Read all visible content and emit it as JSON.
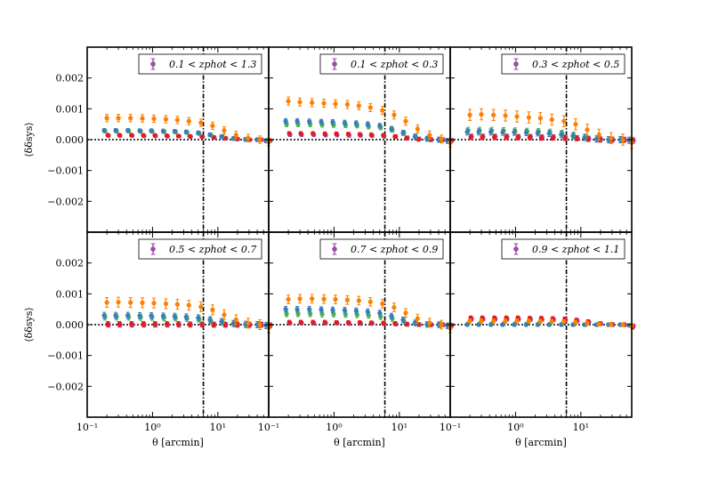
{
  "chart_data": {
    "type": "scatter",
    "layout": "2x3 grid of panels with shared axes",
    "xlabel": "θ [arcmin]",
    "ylabel": "⟨δδsys⟩",
    "xscale": "log",
    "xlim": [
      0.1,
      60
    ],
    "ylim": [
      -0.003,
      0.003
    ],
    "x_ticks": [
      "10⁻¹",
      "10⁰",
      "10¹"
    ],
    "y_ticks": [
      "0.002",
      "0.001",
      "0.000",
      "−0.001",
      "−0.002"
    ],
    "y_tick_values": [
      0.002,
      0.001,
      0.0,
      -0.001,
      -0.002
    ],
    "x_tick_values": [
      0.1,
      1,
      10
    ],
    "vline_theta": 6.0,
    "legend_marker_color": "#984ea3",
    "series_colors": {
      "orange": "#ff7f00",
      "green": "#4daf4a",
      "blue": "#377eb8",
      "purple": "#984ea3",
      "red": "#e41a1c"
    },
    "x_points": [
      0.2,
      0.3,
      0.46,
      0.7,
      1.05,
      1.6,
      2.4,
      3.6,
      5.5,
      8.3,
      12.5,
      19,
      29,
      44,
      60
    ],
    "panels": [
      {
        "legend": "0.1 < zphot < 1.3",
        "series": [
          {
            "name": "orange",
            "values": [
              0.0007,
              0.0007,
              0.0007,
              0.00069,
              0.00068,
              0.00066,
              0.00064,
              0.0006,
              0.00055,
              0.00045,
              0.0003,
              0.00015,
              5e-05,
              0.0,
              -8e-05
            ],
            "err": 0.00012
          },
          {
            "name": "green",
            "values": [
              0.00028,
              0.00028,
              0.00028,
              0.00027,
              0.00027,
              0.00026,
              0.00025,
              0.00023,
              0.0002,
              0.00015,
              0.0001,
              4e-05,
              1e-05,
              0.0,
              -2e-05
            ],
            "err": 6e-05
          },
          {
            "name": "blue",
            "values": [
              0.0003,
              0.0003,
              0.0003,
              0.00029,
              0.00029,
              0.00028,
              0.00027,
              0.00025,
              0.00022,
              0.00016,
              0.0001,
              4e-05,
              1e-05,
              0.0,
              -4e-05
            ],
            "err": 6e-05
          },
          {
            "name": "purple",
            "values": [
              0.00013,
              0.00013,
              0.00013,
              0.00012,
              0.00012,
              0.00011,
              0.00011,
              0.0001,
              9e-05,
              7e-05,
              4e-05,
              2e-05,
              0.0,
              0.0,
              -3e-05
            ],
            "err": 5e-05
          },
          {
            "name": "red",
            "values": [
              0.00015,
              0.00015,
              0.00015,
              0.00014,
              0.00014,
              0.00013,
              0.00012,
              0.00011,
              0.0001,
              8e-05,
              5e-05,
              2e-05,
              0.0,
              0.0,
              -4e-05
            ],
            "err": 5e-05
          }
        ]
      },
      {
        "legend": "0.1 < zphot < 0.3",
        "series": [
          {
            "name": "orange",
            "values": [
              0.00125,
              0.00122,
              0.0012,
              0.00118,
              0.00116,
              0.00114,
              0.0011,
              0.00104,
              0.00095,
              0.0008,
              0.0006,
              0.00035,
              0.00015,
              2e-05,
              -0.0001
            ],
            "err": 0.00013
          },
          {
            "name": "green",
            "values": [
              0.0005,
              0.0005,
              0.0005,
              0.00049,
              0.00048,
              0.00047,
              0.00046,
              0.00043,
              0.0004,
              0.00032,
              0.00022,
              0.0001,
              3e-05,
              0.0,
              -4e-05
            ],
            "err": 8e-05
          },
          {
            "name": "blue",
            "values": [
              0.0006,
              0.0006,
              0.00059,
              0.00058,
              0.00057,
              0.00055,
              0.00053,
              0.0005,
              0.00045,
              0.00035,
              0.00022,
              0.0001,
              3e-05,
              0.0,
              -4e-05
            ],
            "err": 8e-05
          },
          {
            "name": "purple",
            "values": [
              0.00016,
              0.00016,
              0.00016,
              0.00015,
              0.00015,
              0.00014,
              0.00014,
              0.00013,
              0.00012,
              0.0001,
              6e-05,
              2e-05,
              0.0,
              0.0,
              -2e-05
            ],
            "err": 6e-05
          },
          {
            "name": "red",
            "values": [
              0.0002,
              0.0002,
              0.0002,
              0.00019,
              0.00019,
              0.00018,
              0.00017,
              0.00016,
              0.00014,
              0.0001,
              5e-05,
              1e-05,
              0.0,
              0.0,
              -4e-05
            ],
            "err": 6e-05
          }
        ]
      },
      {
        "legend": "0.3 < zphot < 0.5",
        "series": [
          {
            "name": "orange",
            "values": [
              0.0008,
              0.00082,
              0.0008,
              0.00078,
              0.00075,
              0.00072,
              0.0007,
              0.00065,
              0.0006,
              0.0005,
              0.00032,
              0.00016,
              5e-05,
              0.0,
              -0.0001
            ],
            "err": 0.00018
          },
          {
            "name": "green",
            "values": [
              0.0003,
              0.0003,
              0.0003,
              0.00029,
              0.00028,
              0.00027,
              0.00026,
              0.00024,
              0.0002,
              0.00014,
              8e-05,
              3e-05,
              0.0,
              0.0,
              -2e-05
            ],
            "err": 0.0001
          },
          {
            "name": "blue",
            "values": [
              0.00025,
              0.00025,
              0.00025,
              0.00024,
              0.00024,
              0.00023,
              0.00022,
              0.0002,
              0.00017,
              0.00012,
              7e-05,
              2e-05,
              0.0,
              0.0,
              -2e-05
            ],
            "err": 0.0001
          },
          {
            "name": "purple",
            "values": [
              0.0001,
              0.0001,
              0.0001,
              0.0001,
              9e-05,
              9e-05,
              8e-05,
              8e-05,
              7e-05,
              5e-05,
              3e-05,
              1e-05,
              0.0,
              0.0,
              -2e-05
            ],
            "err": 8e-05
          },
          {
            "name": "red",
            "values": [
              8e-05,
              8e-05,
              8e-05,
              8e-05,
              7e-05,
              7e-05,
              6e-05,
              6e-05,
              5e-05,
              4e-05,
              2e-05,
              0.0,
              0.0,
              -1e-05,
              -5e-05
            ],
            "err": 8e-05
          }
        ]
      },
      {
        "legend": "0.5 < zphot < 0.7",
        "series": [
          {
            "name": "orange",
            "values": [
              0.00072,
              0.00073,
              0.00072,
              0.00071,
              0.0007,
              0.00068,
              0.00066,
              0.00063,
              0.00058,
              0.00048,
              0.00032,
              0.00016,
              5e-05,
              0.0,
              -0.0001
            ],
            "err": 0.00016
          },
          {
            "name": "green",
            "values": [
              0.00025,
              0.00025,
              0.00025,
              0.00024,
              0.00024,
              0.00023,
              0.00022,
              0.0002,
              0.00018,
              0.00013,
              8e-05,
              3e-05,
              1e-05,
              0.0,
              -2e-05
            ],
            "err": 0.0001
          },
          {
            "name": "blue",
            "values": [
              0.0003,
              0.0003,
              0.0003,
              0.00029,
              0.00029,
              0.00028,
              0.00027,
              0.00025,
              0.00022,
              0.00016,
              0.0001,
              4e-05,
              1e-05,
              0.0,
              -3e-05
            ],
            "err": 0.0001
          },
          {
            "name": "purple",
            "values": [
              0.0,
              0.0,
              0.0,
              0.0,
              0.0,
              0.0,
              0.0,
              0.0,
              0.0,
              0.0,
              0.0,
              0.0,
              0.0,
              0.0,
              -2e-05
            ],
            "err": 8e-05
          },
          {
            "name": "red",
            "values": [
              2e-05,
              2e-05,
              2e-05,
              2e-05,
              2e-05,
              2e-05,
              2e-05,
              1e-05,
              1e-05,
              0.0,
              0.0,
              0.0,
              0.0,
              0.0,
              -3e-05
            ],
            "err": 8e-05
          }
        ]
      },
      {
        "legend": "0.7 < zphot < 0.9",
        "series": [
          {
            "name": "orange",
            "values": [
              0.00082,
              0.00084,
              0.00084,
              0.00083,
              0.00082,
              0.0008,
              0.00078,
              0.00074,
              0.00068,
              0.00056,
              0.00038,
              0.0002,
              6e-05,
              0.0,
              -0.00012
            ],
            "err": 0.00014
          },
          {
            "name": "green",
            "values": [
              0.00035,
              0.00035,
              0.00035,
              0.00034,
              0.00034,
              0.00033,
              0.00032,
              0.0003,
              0.00026,
              0.0002,
              0.00012,
              5e-05,
              1e-05,
              0.0,
              -3e-05
            ],
            "err": 9e-05
          },
          {
            "name": "blue",
            "values": [
              0.0005,
              0.0005,
              0.0005,
              0.00049,
              0.00048,
              0.00047,
              0.00045,
              0.00042,
              0.00038,
              0.00028,
              0.00016,
              6e-05,
              1e-05,
              0.0,
              -4e-05
            ],
            "err": 9e-05
          },
          {
            "name": "purple",
            "values": [
              5e-05,
              5e-05,
              5e-05,
              5e-05,
              5e-05,
              4e-05,
              4e-05,
              4e-05,
              3e-05,
              2e-05,
              1e-05,
              0.0,
              0.0,
              0.0,
              -2e-05
            ],
            "err": 6e-05
          },
          {
            "name": "red",
            "values": [
              8e-05,
              8e-05,
              8e-05,
              8e-05,
              7e-05,
              7e-05,
              7e-05,
              6e-05,
              5e-05,
              4e-05,
              2e-05,
              1e-05,
              0.0,
              0.0,
              -3e-05
            ],
            "err": 6e-05
          }
        ]
      },
      {
        "legend": "0.9 < zphot < 1.1",
        "series": [
          {
            "name": "orange",
            "values": [
              0.00012,
              0.00012,
              0.00012,
              0.00012,
              0.00012,
              0.00012,
              0.00011,
              0.00011,
              0.0001,
              8e-05,
              5e-05,
              2e-05,
              0.0,
              0.0,
              -3e-05
            ],
            "err": 6e-05
          },
          {
            "name": "green",
            "values": [
              3e-05,
              3e-05,
              3e-05,
              3e-05,
              3e-05,
              3e-05,
              3e-05,
              2e-05,
              2e-05,
              1e-05,
              0.0,
              0.0,
              0.0,
              0.0,
              -2e-05
            ],
            "err": 5e-05
          },
          {
            "name": "blue",
            "values": [
              0.0,
              0.0,
              0.0,
              0.0,
              0.0,
              0.0,
              0.0,
              0.0,
              0.0,
              0.0,
              0.0,
              0.0,
              0.0,
              0.0,
              -2e-05
            ],
            "err": 5e-05
          },
          {
            "name": "purple",
            "values": [
              0.00018,
              0.00018,
              0.00018,
              0.00018,
              0.00018,
              0.00017,
              0.00017,
              0.00016,
              0.00015,
              0.00012,
              8e-05,
              3e-05,
              0.0,
              0.0,
              -4e-05
            ],
            "err": 6e-05
          },
          {
            "name": "red",
            "values": [
              0.00022,
              0.00022,
              0.00022,
              0.00022,
              0.00022,
              0.00021,
              0.00021,
              0.0002,
              0.00019,
              0.00015,
              0.0001,
              4e-05,
              1e-05,
              0.0,
              -8e-05
            ],
            "err": 6e-05
          }
        ]
      }
    ]
  }
}
